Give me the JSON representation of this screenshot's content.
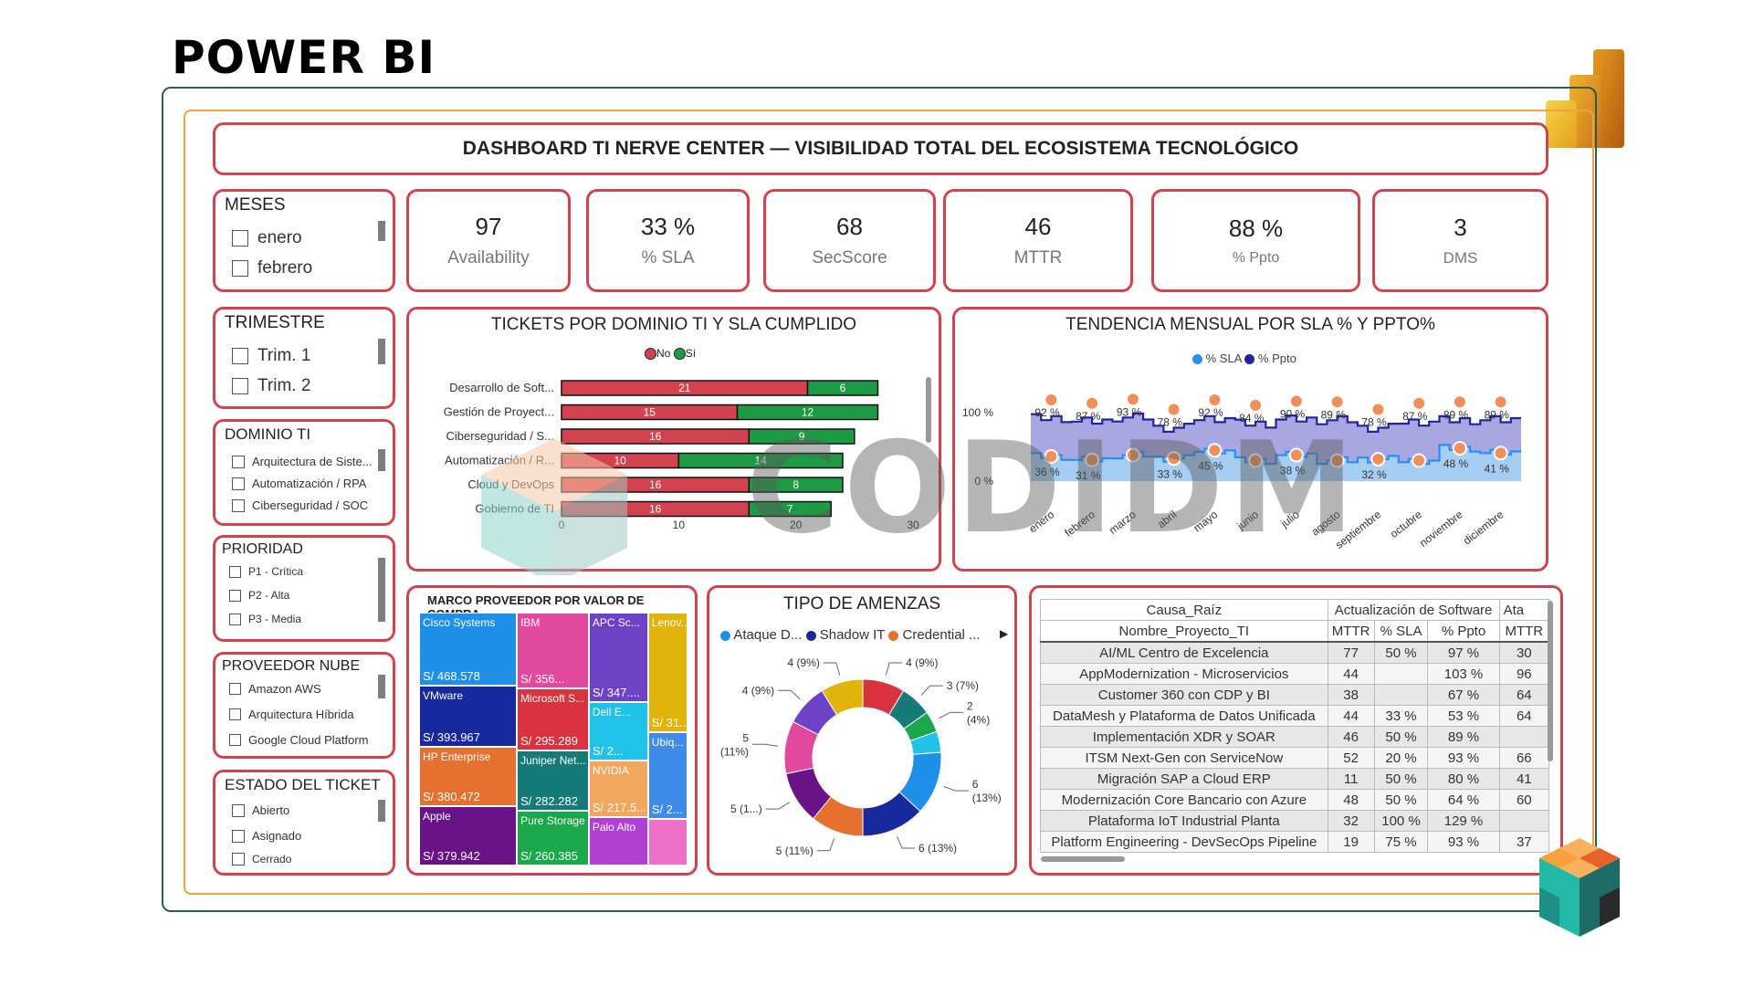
{
  "page_title": "POWER BI",
  "dashboard_title": "DASHBOARD TI NERVE CENTER — VISIBILIDAD TOTAL DEL ECOSISTEMA TECNOLÓGICO",
  "watermark": "CODIDM",
  "slicers": {
    "meses": {
      "title": "MESES",
      "items": [
        "enero",
        "febrero"
      ]
    },
    "trimestre": {
      "title": "TRIMESTRE",
      "items": [
        "Trim. 1",
        "Trim. 2"
      ]
    },
    "dominio": {
      "title": "DOMINIO TI",
      "items": [
        "Arquitectura de Siste...",
        "Automatización / RPA",
        "Ciberseguridad / SOC"
      ]
    },
    "prioridad": {
      "title": "PRIORIDAD",
      "items": [
        "P1 - Crítica",
        "P2 - Alta",
        "P3 - Media"
      ]
    },
    "proveedor": {
      "title": "PROVEEDOR NUBE",
      "items": [
        "Amazon AWS",
        "Arquitectura Híbrida",
        "Google Cloud Platform"
      ]
    },
    "estado": {
      "title": "ESTADO DEL TICKET",
      "items": [
        "Abierto",
        "Asignado",
        "Cerrado"
      ]
    }
  },
  "kpis": [
    {
      "value": "97",
      "label": "Availability"
    },
    {
      "value": "33 %",
      "label": "% SLA"
    },
    {
      "value": "68",
      "label": "SecScore"
    },
    {
      "value": "46",
      "label": "MTTR"
    },
    {
      "value": "88 %",
      "label": "% Ppto"
    },
    {
      "value": "3",
      "label": "DMS"
    }
  ],
  "colors": {
    "card_border": "#d2434f",
    "no": "#d2434f",
    "si": "#1e9a45",
    "sla": "#2b8ff0",
    "ppto": "#22239f",
    "dot": "#f08f5a"
  },
  "chart_data": [
    {
      "type": "bar",
      "title": "TICKETS POR DOMINIO TI Y SLA CUMPLIDO",
      "orientation": "horizontal-stacked",
      "categories": [
        "Desarrollo de Soft...",
        "Gestión de Proyect...",
        "Ciberseguridad / S...",
        "Automatización / R...",
        "Cloud y DevOps",
        "Gobierno de TI"
      ],
      "series": [
        {
          "name": "No",
          "values": [
            21,
            15,
            16,
            10,
            16,
            16
          ]
        },
        {
          "name": "Sí",
          "values": [
            6,
            12,
            9,
            14,
            8,
            7
          ]
        }
      ],
      "xticks": [
        "0",
        "10",
        "20",
        "30"
      ],
      "xlim": [
        0,
        30
      ],
      "legend_position": "top"
    },
    {
      "type": "area",
      "title": "TENDENCIA MENSUAL POR SLA % Y PPTO%",
      "categories": [
        "enero",
        "febrero",
        "marzo",
        "abril",
        "mayo",
        "junio",
        "julio",
        "agosto",
        "septiembre",
        "octubre",
        "noviembre",
        "diciembre"
      ],
      "series": [
        {
          "name": "% SLA",
          "values": [
            36,
            31,
            38,
            33,
            45,
            30,
            38,
            30,
            32,
            30,
            48,
            41
          ]
        },
        {
          "name": "% Ppto",
          "values": [
            92,
            87,
            93,
            78,
            92,
            84,
            90,
            89,
            78,
            87,
            89,
            89
          ]
        }
      ],
      "yticks": [
        "0 %",
        "100 %"
      ],
      "point_labels": [
        {
          "month": "enero",
          "sla": "36 %",
          "ppto": "92 %"
        },
        {
          "month": "febrero",
          "sla": "31 %",
          "ppto": "87 %"
        },
        {
          "month": "marzo",
          "sla": "",
          "ppto": "93 %"
        },
        {
          "month": "abril",
          "sla": "33 %",
          "ppto": "78 %"
        },
        {
          "month": "mayo",
          "sla": "45 %",
          "ppto": "92 %"
        },
        {
          "month": "junio",
          "sla": "",
          "ppto": "84 %"
        },
        {
          "month": "julio",
          "sla": "38 %",
          "ppto": "90 %"
        },
        {
          "month": "agosto",
          "sla": "",
          "ppto": "89 %"
        },
        {
          "month": "septiembre",
          "sla": "32 %",
          "ppto": "78 %"
        },
        {
          "month": "octubre",
          "sla": "",
          "ppto": "87 %"
        },
        {
          "month": "noviembre",
          "sla": "48 %",
          "ppto": "89 %"
        },
        {
          "month": "diciembre",
          "sla": "41 %",
          "ppto": "89 %"
        }
      ],
      "legend_position": "top"
    },
    {
      "type": "treemap",
      "title": "MARCO PROVEEDOR POR VALOR DE COMPRA",
      "items": [
        {
          "name": "Cisco Systems",
          "label": "S/ 468.578",
          "value": 468.578,
          "color": "#1f8fe8"
        },
        {
          "name": "VMware",
          "label": "S/ 393.967",
          "value": 393.967,
          "color": "#17299c"
        },
        {
          "name": "HP Enterprise",
          "label": "S/ 380.472",
          "value": 380.472,
          "color": "#e6702e"
        },
        {
          "name": "Apple",
          "label": "S/ 379.942",
          "value": 379.942,
          "color": "#6a1288"
        },
        {
          "name": "IBM",
          "label": "S/ 356...",
          "value": 356,
          "color": "#e2489e"
        },
        {
          "name": "APC Sc...",
          "label": "S/ 347....",
          "value": 347,
          "color": "#6d42c6"
        },
        {
          "name": "Lenov...",
          "label": "S/ 31...",
          "value": 310,
          "color": "#e1b40c"
        },
        {
          "name": "Microsoft S...",
          "label": "S/ 295.289",
          "value": 295.289,
          "color": "#d9333f"
        },
        {
          "name": "Juniper Net...",
          "label": "S/ 282.282",
          "value": 282.282,
          "color": "#167a78"
        },
        {
          "name": "Pure Storage",
          "label": "S/ 260.385",
          "value": 260.385,
          "color": "#1aa84a"
        },
        {
          "name": "Dell E...",
          "label": "S/ 2...",
          "value": 230,
          "color": "#21c2e8"
        },
        {
          "name": "Ubiq...",
          "label": "S/ 2...",
          "value": 225,
          "color": "#3d8ce9"
        },
        {
          "name": "NVIDIA",
          "label": "S/ 217.5...",
          "value": 217.5,
          "color": "#f3a65d"
        },
        {
          "name": "Palo Alto",
          "label": "",
          "value": 190,
          "color": "#b13fd4"
        },
        {
          "name": "",
          "label": "",
          "value": 120,
          "color": "#f06fc8"
        }
      ]
    },
    {
      "type": "pie",
      "title": "TIPO DE AMENZAS",
      "legend": [
        "Ataque D...",
        "Shadow IT",
        "Credential ..."
      ],
      "slices": [
        {
          "value": 4,
          "label": "4 (9%)",
          "color": "#d9333f"
        },
        {
          "value": 3,
          "label": "3 (7%)",
          "color": "#167a78"
        },
        {
          "value": 2,
          "label": "2\n(4%)",
          "color": "#1aa84a"
        },
        {
          "value": 2,
          "label": "",
          "color": "#21c2e8"
        },
        {
          "value": 6,
          "label": "6\n(13%)",
          "color": "#1f8fe8"
        },
        {
          "value": 6,
          "label": "6 (13%)",
          "color": "#17299c"
        },
        {
          "value": 5,
          "label": "5 (11%)",
          "color": "#e6702e"
        },
        {
          "value": 5,
          "label": "5 (1...)",
          "color": "#6a1288"
        },
        {
          "value": 5,
          "label": "5\n(11%)",
          "color": "#e2489e"
        },
        {
          "value": 4,
          "label": "4 (9%)",
          "color": "#6d42c6"
        },
        {
          "value": 4,
          "label": "4 (9%)",
          "color": "#e1b40c"
        }
      ]
    }
  ],
  "matrix": {
    "col_group_header_label": "Causa_Raíz",
    "row_header_label": "Nombre_Proyecto_TI",
    "groups": [
      "Actualización de Software",
      "Ata"
    ],
    "subcols": [
      "MTTR",
      "% SLA",
      "% Ppto",
      "MTTR"
    ],
    "rows": [
      [
        "AI/ML Centro de Excelencia",
        "77",
        "50 %",
        "97 %",
        "30"
      ],
      [
        "AppModernization - Microservicios",
        "44",
        "",
        "103 %",
        "96"
      ],
      [
        "Customer 360 con CDP y BI",
        "38",
        "",
        "67 %",
        "64"
      ],
      [
        "DataMesh y Plataforma de Datos Unificada",
        "44",
        "33 %",
        "53 %",
        "64"
      ],
      [
        "Implementación XDR y SOAR",
        "46",
        "50 %",
        "89 %",
        ""
      ],
      [
        "ITSM Next-Gen con ServiceNow",
        "52",
        "20 %",
        "93 %",
        "66"
      ],
      [
        "Migración SAP a Cloud ERP",
        "11",
        "50 %",
        "80 %",
        "41"
      ],
      [
        "Modernización Core Bancario con Azure",
        "48",
        "50 %",
        "64 %",
        "60"
      ],
      [
        "Plataforma IoT Industrial Planta",
        "32",
        "100 %",
        "129 %",
        ""
      ],
      [
        "Platform Engineering - DevSecOps Pipeline",
        "19",
        "75 %",
        "93 %",
        "37"
      ]
    ]
  }
}
